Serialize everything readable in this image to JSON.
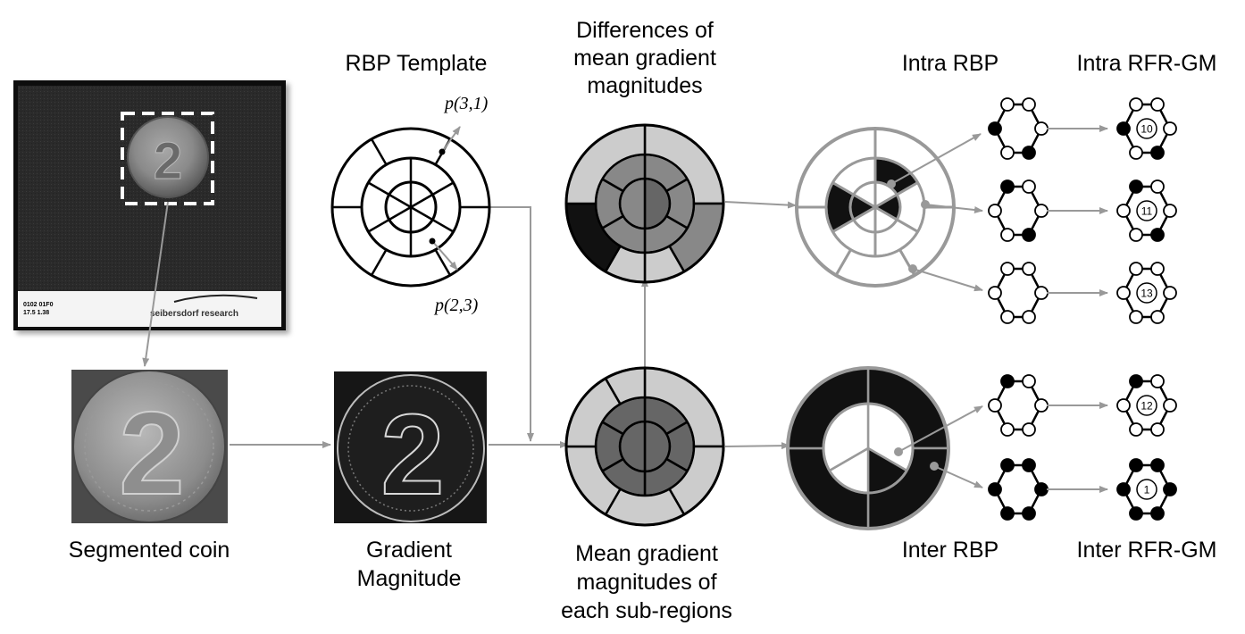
{
  "labels": {
    "rbp_template": "RBP Template",
    "differences_line1": "Differences of",
    "differences_line2": "mean gradient",
    "differences_line3": "magnitudes",
    "intra_rbp": "Intra RBP",
    "intra_rfr_gm": "Intra RFR-GM",
    "segmented_coin": "Segmented coin",
    "gradient_line1": "Gradient",
    "gradient_line2": "Magnitude",
    "mean_line1": "Mean gradient",
    "mean_line2": "magnitudes of",
    "mean_line3": "each sub-regions",
    "inter_rbp": "Inter RBP",
    "inter_rfr_gm": "Inter RFR-GM",
    "p31": "p(3,1)",
    "p23": "p(2,3)"
  },
  "photo": {
    "code_line1": "0102 01F0",
    "code_line2": "17.5  1.38",
    "brand": "seibersdorf research",
    "coin_digit": "2"
  },
  "patterns": {
    "intra": [
      {
        "nodes": [
          0,
          0,
          0,
          1,
          0,
          1
        ],
        "value": "10"
      },
      {
        "nodes": [
          1,
          0,
          0,
          1,
          0,
          0
        ],
        "value": "11"
      },
      {
        "nodes": [
          0,
          0,
          0,
          0,
          0,
          0
        ],
        "value": "13"
      }
    ],
    "inter": [
      {
        "nodes": [
          1,
          0,
          0,
          0,
          0,
          0
        ],
        "value": "12"
      },
      {
        "nodes": [
          1,
          1,
          1,
          1,
          1,
          1
        ],
        "value": "1"
      }
    ]
  },
  "colors": {
    "arrow": "#999999",
    "light_gray": "#cccccc",
    "mid_gray": "#888888",
    "dark_gray": "#666666",
    "black": "#111111"
  }
}
